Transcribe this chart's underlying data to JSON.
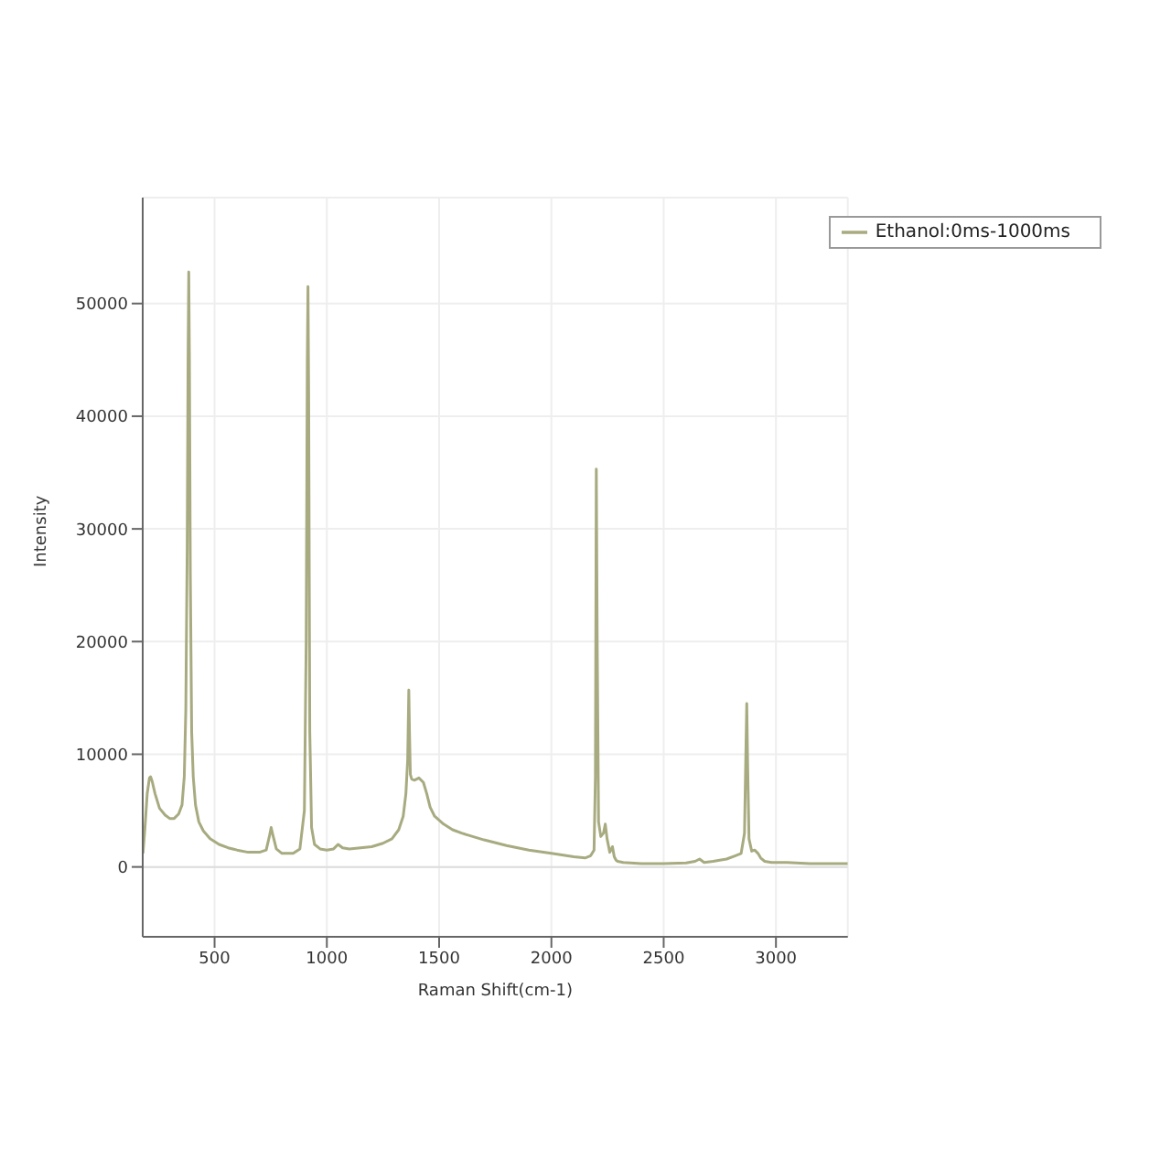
{
  "chart_data": {
    "type": "line",
    "xlabel": "Raman Shift(cm-1)",
    "ylabel": "Intensity",
    "x": [
      181,
      190,
      200,
      210,
      215,
      222,
      235,
      255,
      280,
      300,
      320,
      340,
      355,
      365,
      372,
      378,
      382,
      385,
      388,
      392,
      398,
      405,
      415,
      430,
      450,
      480,
      520,
      560,
      600,
      650,
      700,
      730,
      745,
      752,
      760,
      775,
      800,
      850,
      880,
      900,
      908,
      913,
      916,
      919,
      924,
      932,
      945,
      970,
      1000,
      1030,
      1050,
      1070,
      1100,
      1150,
      1200,
      1250,
      1290,
      1320,
      1340,
      1352,
      1360,
      1365,
      1368,
      1372,
      1378,
      1390,
      1410,
      1430,
      1445,
      1460,
      1480,
      1520,
      1560,
      1600,
      1700,
      1800,
      1900,
      2000,
      2100,
      2150,
      2175,
      2190,
      2196,
      2200,
      2204,
      2210,
      2220,
      2232,
      2240,
      2248,
      2260,
      2272,
      2280,
      2288,
      2295,
      2320,
      2400,
      2500,
      2600,
      2640,
      2660,
      2680,
      2720,
      2780,
      2820,
      2845,
      2860,
      2866,
      2870,
      2874,
      2880,
      2892,
      2905,
      2920,
      2932,
      2950,
      2980,
      3050,
      3150,
      3250,
      3320
    ],
    "series": [
      {
        "name": "Ethanol:0ms-1000ms",
        "color": "#a8ab80",
        "values": [
          1200,
          3500,
          6500,
          7900,
          8000,
          7600,
          6500,
          5200,
          4600,
          4300,
          4300,
          4700,
          5500,
          8000,
          14000,
          28000,
          45000,
          52800,
          45000,
          26000,
          12000,
          8000,
          5500,
          4000,
          3200,
          2500,
          2000,
          1700,
          1500,
          1300,
          1300,
          1500,
          2800,
          3500,
          2800,
          1600,
          1200,
          1200,
          1600,
          5000,
          20000,
          45000,
          51500,
          42000,
          12000,
          3500,
          2000,
          1600,
          1500,
          1600,
          2000,
          1700,
          1600,
          1700,
          1800,
          2100,
          2500,
          3300,
          4500,
          6500,
          9500,
          15700,
          12000,
          8200,
          7800,
          7700,
          7900,
          7500,
          6500,
          5300,
          4500,
          3800,
          3300,
          3000,
          2400,
          1900,
          1500,
          1200,
          900,
          800,
          1000,
          1500,
          8000,
          35300,
          20000,
          4000,
          2700,
          3000,
          3800,
          2500,
          1300,
          1800,
          900,
          600,
          500,
          400,
          300,
          300,
          350,
          500,
          700,
          400,
          500,
          700,
          1000,
          1200,
          3000,
          10000,
          14500,
          9000,
          2500,
          1400,
          1500,
          1200,
          800,
          500,
          400,
          400,
          300,
          300,
          300
        ]
      }
    ],
    "xlim": [
      180,
      3320
    ],
    "xticks": [
      500,
      1000,
      1500,
      2000,
      2500,
      3000
    ],
    "ylim": [
      -6200,
      59400
    ],
    "yticks": [
      0,
      10000,
      20000,
      30000,
      40000,
      50000
    ],
    "grid": true,
    "legend": "top right",
    "marker": "none",
    "line_style": "solid"
  }
}
